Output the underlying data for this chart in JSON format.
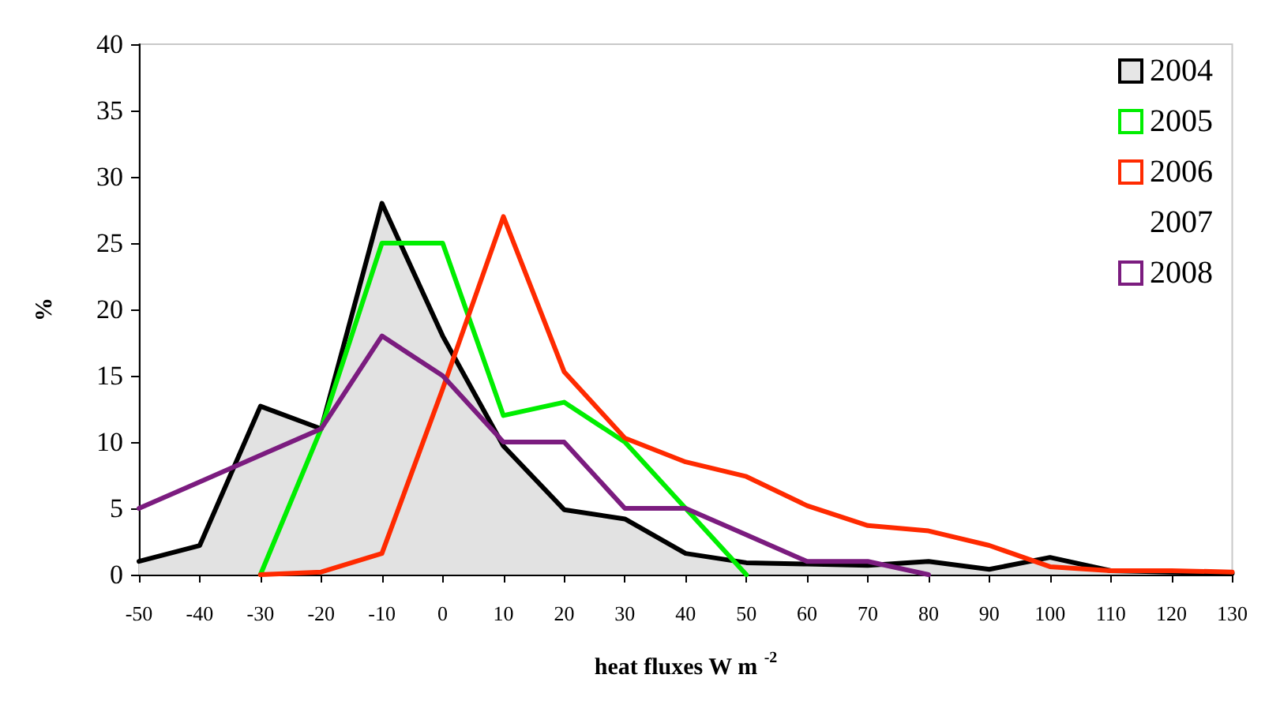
{
  "chart_data": {
    "type": "line",
    "xlabel": "heat fluxes W m$^{-2}$",
    "ylabel": "%",
    "x": [
      -50,
      -40,
      -30,
      -20,
      -10,
      0,
      10,
      20,
      30,
      40,
      50,
      60,
      70,
      80,
      90,
      100,
      110,
      120,
      130
    ],
    "xlim": [
      -50,
      130
    ],
    "xticks": [
      -50,
      -40,
      -30,
      -20,
      -10,
      0,
      10,
      20,
      30,
      40,
      50,
      60,
      70,
      80,
      90,
      100,
      110,
      120,
      130
    ],
    "ylim": [
      0,
      40
    ],
    "yticks": [
      0,
      5,
      10,
      15,
      20,
      25,
      30,
      35,
      40
    ],
    "grid": false,
    "legend": "top right",
    "marker": "none",
    "line_style": "solid",
    "series": [
      {
        "name": "2004",
        "type": "area",
        "color": "#000000",
        "values": [
          1,
          2.2,
          12.7,
          11,
          28,
          18,
          9.7,
          4.9,
          4.2,
          1.6,
          0.9,
          0.8,
          0.7,
          1,
          0.4,
          1.3,
          0.3,
          0.2,
          0.1
        ]
      },
      {
        "name": "2005",
        "color": "#00ee00",
        "values": [
          null,
          null,
          0,
          11,
          25,
          25,
          12,
          13,
          10,
          5,
          0,
          null,
          null,
          null,
          null,
          null,
          null,
          null,
          null
        ]
      },
      {
        "name": "2006",
        "color": "#ff2a00",
        "values": [
          null,
          null,
          0,
          0.2,
          1.6,
          14,
          27,
          15.3,
          10.3,
          8.5,
          7.4,
          5.2,
          3.7,
          3.3,
          2.2,
          0.6,
          0.3,
          0.3,
          0.2
        ]
      },
      {
        "name": "2007",
        "values": [
          null,
          null,
          null,
          null,
          null,
          null,
          null,
          null,
          null,
          null,
          null,
          null,
          null,
          null,
          null,
          null,
          null,
          null,
          null
        ]
      },
      {
        "name": "2008",
        "color": "#7b1c7f",
        "values": [
          5,
          7,
          9,
          11,
          18,
          15,
          10,
          10,
          5,
          5,
          3,
          1,
          1,
          0,
          null,
          null,
          null,
          null,
          null
        ]
      }
    ]
  }
}
